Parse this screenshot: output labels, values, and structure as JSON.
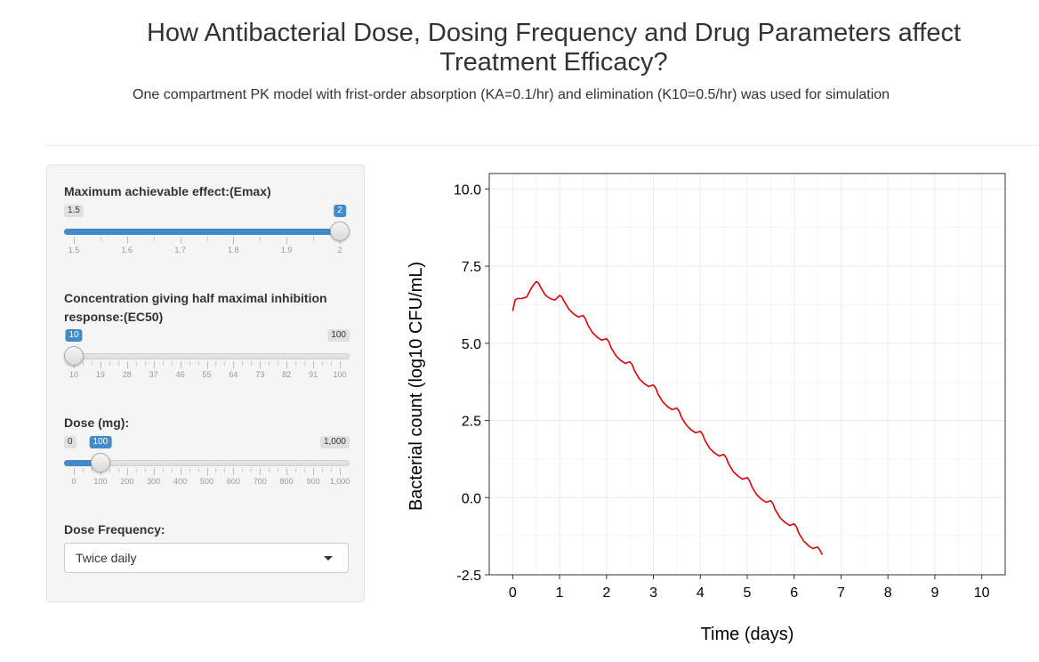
{
  "page": {
    "title": "How Antibacterial Dose, Dosing Frequency and Drug Parameters affect Treatment Efficacy?",
    "subtitle": "One compartment PK model with frist-order absorption (KA=0.1/hr) and elimination (K10=0.5/hr) was used for simulation"
  },
  "sidebar": {
    "emax": {
      "label": "Maximum achievable effect:(Emax)",
      "min": 1.5,
      "max": 2,
      "value": 2,
      "min_label": "1.5",
      "max_label": "2",
      "value_label": "2",
      "tick_labels": [
        "1.5",
        "1.6",
        "1.7",
        "1.8",
        "1.9",
        "2"
      ],
      "minor_per_major": 1
    },
    "ec50": {
      "label": "Concentration giving half maximal inhibition response:(EC50)",
      "min": 10,
      "max": 100,
      "value": 10,
      "min_label": "10",
      "max_label": "100",
      "value_label": "10",
      "tick_labels": [
        "10",
        "19",
        "28",
        "37",
        "46",
        "55",
        "64",
        "73",
        "82",
        "91",
        "100"
      ],
      "minor_per_major": 2
    },
    "dose": {
      "label": "Dose (mg):",
      "min": 0,
      "max": 1000,
      "value": 100,
      "min_label": "0",
      "max_label": "1,000",
      "value_label": "100",
      "tick_labels": [
        "0",
        "100",
        "200",
        "300",
        "400",
        "500",
        "600",
        "700",
        "800",
        "900",
        "1,000"
      ],
      "minor_per_major": 2
    },
    "frequency": {
      "label": "Dose Frequency:",
      "selected": "Twice daily"
    }
  },
  "colors": {
    "accent": "#428bca",
    "series": "#e00000",
    "grid": "#ebebeb"
  },
  "chart_data": {
    "type": "line",
    "xlabel": "Time (days)",
    "ylabel": "Bacterial count (log10 CFU/mL)",
    "xlim": [
      -0.5,
      10.5
    ],
    "ylim": [
      -2.5,
      10.5
    ],
    "x_ticks": [
      0,
      1,
      2,
      3,
      4,
      5,
      6,
      7,
      8,
      9,
      10
    ],
    "y_ticks": [
      10.0,
      7.5,
      5.0,
      2.5,
      0.0,
      -2.5
    ],
    "y_tick_labels": [
      "10.0",
      "7.5",
      "5.0",
      "2.5",
      "0.0",
      "-2.5"
    ],
    "grid": true,
    "series": [
      {
        "x": [
          0,
          0.05,
          0.1,
          0.2,
          0.3,
          0.4,
          0.5,
          0.55,
          0.6,
          0.7,
          0.8,
          0.9,
          1.0,
          1.05,
          1.1,
          1.2,
          1.3,
          1.4,
          1.5,
          1.55,
          1.6,
          1.7,
          1.8,
          1.9,
          2.0,
          2.05,
          2.1,
          2.2,
          2.3,
          2.4,
          2.5,
          2.55,
          2.6,
          2.7,
          2.8,
          2.9,
          3.0,
          3.05,
          3.1,
          3.2,
          3.3,
          3.4,
          3.5,
          3.55,
          3.6,
          3.7,
          3.8,
          3.9,
          4.0,
          4.05,
          4.1,
          4.2,
          4.3,
          4.4,
          4.5,
          4.55,
          4.6,
          4.7,
          4.8,
          4.9,
          5.0,
          5.05,
          5.1,
          5.2,
          5.3,
          5.4,
          5.5,
          5.55,
          5.6,
          5.7,
          5.8,
          5.9,
          6.0,
          6.05,
          6.1,
          6.2,
          6.3,
          6.4,
          6.5,
          6.55,
          6.6
        ],
        "y": [
          6.05,
          6.4,
          6.45,
          6.45,
          6.5,
          6.8,
          7.0,
          6.95,
          6.8,
          6.55,
          6.45,
          6.4,
          6.55,
          6.5,
          6.35,
          6.1,
          5.95,
          5.85,
          5.9,
          5.8,
          5.6,
          5.35,
          5.2,
          5.1,
          5.15,
          5.05,
          4.85,
          4.6,
          4.45,
          4.35,
          4.4,
          4.3,
          4.1,
          3.85,
          3.7,
          3.6,
          3.65,
          3.55,
          3.35,
          3.1,
          2.95,
          2.85,
          2.9,
          2.8,
          2.6,
          2.35,
          2.2,
          2.1,
          2.15,
          2.05,
          1.85,
          1.6,
          1.45,
          1.35,
          1.4,
          1.3,
          1.1,
          0.85,
          0.7,
          0.6,
          0.65,
          0.55,
          0.35,
          0.1,
          -0.05,
          -0.15,
          -0.1,
          -0.2,
          -0.4,
          -0.65,
          -0.8,
          -0.9,
          -0.85,
          -0.95,
          -1.15,
          -1.4,
          -1.55,
          -1.65,
          -1.6,
          -1.7,
          -1.85
        ]
      }
    ]
  }
}
